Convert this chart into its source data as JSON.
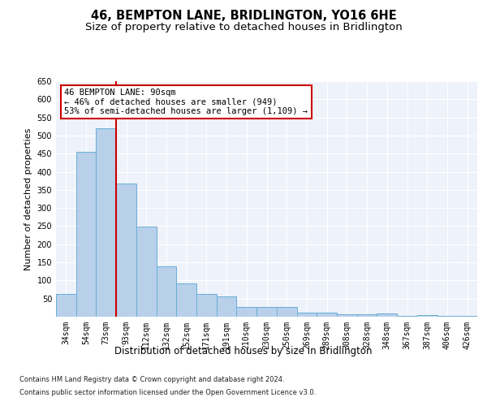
{
  "title": "46, BEMPTON LANE, BRIDLINGTON, YO16 6HE",
  "subtitle": "Size of property relative to detached houses in Bridlington",
  "xlabel": "Distribution of detached houses by size in Bridlington",
  "ylabel": "Number of detached properties",
  "footnote1": "Contains HM Land Registry data © Crown copyright and database right 2024.",
  "footnote2": "Contains public sector information licensed under the Open Government Licence v3.0.",
  "categories": [
    "34sqm",
    "54sqm",
    "73sqm",
    "93sqm",
    "112sqm",
    "132sqm",
    "152sqm",
    "171sqm",
    "191sqm",
    "210sqm",
    "230sqm",
    "250sqm",
    "269sqm",
    "289sqm",
    "308sqm",
    "328sqm",
    "348sqm",
    "367sqm",
    "387sqm",
    "406sqm",
    "426sqm"
  ],
  "values": [
    62,
    455,
    521,
    368,
    248,
    139,
    91,
    62,
    55,
    27,
    26,
    26,
    11,
    12,
    6,
    7,
    9,
    3,
    4,
    3,
    3
  ],
  "bar_color": "#b8d0ea",
  "bar_edge_color": "#6aaed6",
  "vline_color": "#cc0000",
  "annotation_text": "46 BEMPTON LANE: 90sqm\n← 46% of detached houses are smaller (949)\n53% of semi-detached houses are larger (1,109) →",
  "annotation_box_color": "white",
  "annotation_box_edge_color": "#cc0000",
  "ylim": [
    0,
    650
  ],
  "yticks": [
    0,
    50,
    100,
    150,
    200,
    250,
    300,
    350,
    400,
    450,
    500,
    550,
    600,
    650
  ],
  "bg_color": "#eef2fa",
  "grid_color": "white",
  "title_fontsize": 10.5,
  "subtitle_fontsize": 9.5,
  "xlabel_fontsize": 8.5,
  "ylabel_fontsize": 8,
  "tick_fontsize": 7,
  "annotation_fontsize": 7.5,
  "footnote_fontsize": 6
}
